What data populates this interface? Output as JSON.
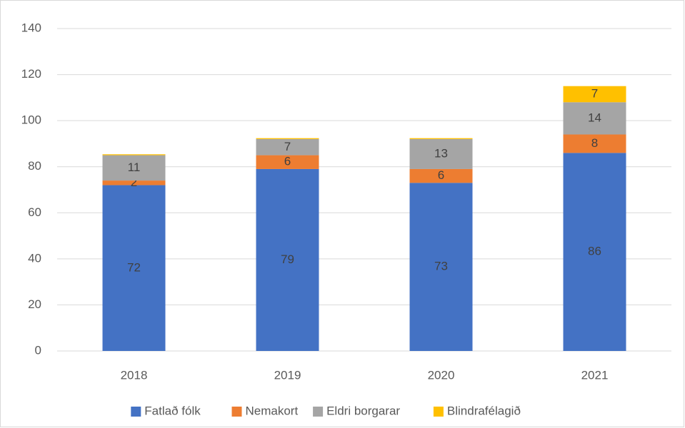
{
  "chart_data": {
    "type": "stacked_bar",
    "categories": [
      "2018",
      "2019",
      "2020",
      "2021"
    ],
    "series": [
      {
        "name": "Fatlað fólk",
        "color": "#4472c4",
        "values": [
          72,
          79,
          73,
          86
        ]
      },
      {
        "name": "Nemakort",
        "color": "#ed7d31",
        "values": [
          2,
          6,
          6,
          8
        ]
      },
      {
        "name": "Eldri borgarar",
        "color": "#a5a5a5",
        "values": [
          11,
          7,
          13,
          14
        ]
      },
      {
        "name": "Blindrafélagið",
        "color": "#ffc000",
        "values": [
          0.4,
          0.4,
          0.4,
          7
        ],
        "value_labels": [
          null,
          null,
          null,
          "7"
        ]
      }
    ],
    "ylim": [
      0,
      140
    ],
    "yticks": [
      0,
      20,
      40,
      60,
      80,
      100,
      120,
      140
    ],
    "grid": true,
    "legend": "bottom"
  }
}
